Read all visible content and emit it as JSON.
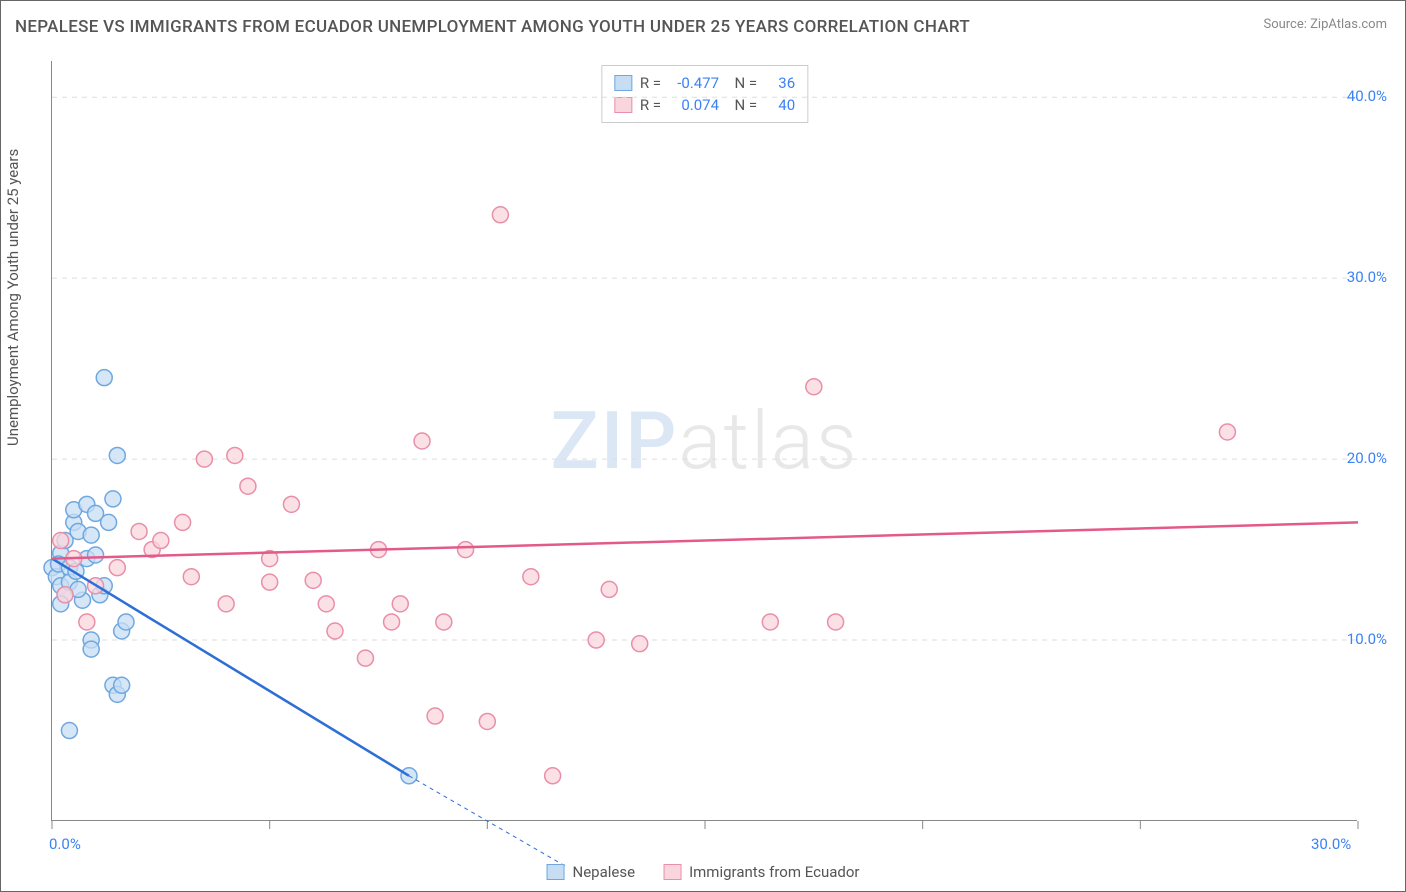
{
  "title": "NEPALESE VS IMMIGRANTS FROM ECUADOR UNEMPLOYMENT AMONG YOUTH UNDER 25 YEARS CORRELATION CHART",
  "source_label": "Source: ZipAtlas.com",
  "y_axis_label": "Unemployment Among Youth under 25 years",
  "watermark_a": "ZIP",
  "watermark_b": "atlas",
  "chart": {
    "type": "scatter",
    "background_color": "#ffffff",
    "grid_color": "#dddddd",
    "axis_color": "#888888",
    "tick_label_color": "#3b82f6",
    "xlim": [
      0,
      30
    ],
    "ylim": [
      0,
      42
    ],
    "y_ticks": [
      10,
      20,
      30,
      40
    ],
    "y_tick_labels": [
      "10.0%",
      "20.0%",
      "30.0%",
      "40.0%"
    ],
    "x_ticks": [
      0,
      5,
      10,
      15,
      20,
      25,
      30
    ],
    "x_tick_labels_shown": {
      "0": "0.0%",
      "30": "30.0%"
    },
    "marker_radius": 8,
    "marker_stroke_width": 1.5,
    "trend_line_width": 2.5,
    "trend_dash_width": 1,
    "title_fontsize": 17,
    "label_fontsize": 15
  },
  "series": [
    {
      "name": "Nepalese",
      "fill": "#c7ddf4",
      "stroke": "#6fa8e0",
      "line_color": "#2e6fd6",
      "R": "-0.477",
      "N": "36",
      "trend": {
        "x1": 0,
        "y1": 14.5,
        "x2": 8.2,
        "y2": 2.5,
        "dash_to_x": 11.8,
        "dash_to_y": -2.5
      },
      "points": [
        [
          0.0,
          14.0
        ],
        [
          0.1,
          13.5
        ],
        [
          0.2,
          14.8
        ],
        [
          0.2,
          13.0
        ],
        [
          0.15,
          14.2
        ],
        [
          0.3,
          12.5
        ],
        [
          0.3,
          15.5
        ],
        [
          0.4,
          14.0
        ],
        [
          0.4,
          13.2
        ],
        [
          0.5,
          16.5
        ],
        [
          0.5,
          17.2
        ],
        [
          0.6,
          16.0
        ],
        [
          0.55,
          13.8
        ],
        [
          0.7,
          12.2
        ],
        [
          0.8,
          17.5
        ],
        [
          0.8,
          14.5
        ],
        [
          0.9,
          10.0
        ],
        [
          0.9,
          9.5
        ],
        [
          1.0,
          17.0
        ],
        [
          1.0,
          14.7
        ],
        [
          1.1,
          12.5
        ],
        [
          1.2,
          13.0
        ],
        [
          1.3,
          16.5
        ],
        [
          1.4,
          17.8
        ],
        [
          1.4,
          7.5
        ],
        [
          1.5,
          7.0
        ],
        [
          1.5,
          20.2
        ],
        [
          1.6,
          10.5
        ],
        [
          1.7,
          11.0
        ],
        [
          0.4,
          5.0
        ],
        [
          1.6,
          7.5
        ],
        [
          1.2,
          24.5
        ],
        [
          0.2,
          12.0
        ],
        [
          0.6,
          12.8
        ],
        [
          0.9,
          15.8
        ],
        [
          8.2,
          2.5
        ]
      ]
    },
    {
      "name": "Immigrants from Ecuador",
      "fill": "#f9d5de",
      "stroke": "#e98fa8",
      "line_color": "#e35a8a",
      "R": "0.074",
      "N": "40",
      "trend": {
        "x1": 0,
        "y1": 14.5,
        "x2": 30,
        "y2": 16.5
      },
      "points": [
        [
          0.3,
          12.5
        ],
        [
          0.5,
          14.5
        ],
        [
          0.8,
          11.0
        ],
        [
          1.0,
          13.0
        ],
        [
          1.5,
          14.0
        ],
        [
          2.0,
          16.0
        ],
        [
          2.3,
          15.0
        ],
        [
          2.5,
          15.5
        ],
        [
          3.0,
          16.5
        ],
        [
          3.2,
          13.5
        ],
        [
          3.5,
          20.0
        ],
        [
          4.0,
          12.0
        ],
        [
          4.2,
          20.2
        ],
        [
          4.5,
          18.5
        ],
        [
          5.0,
          13.2
        ],
        [
          5.0,
          14.5
        ],
        [
          5.5,
          17.5
        ],
        [
          6.0,
          13.3
        ],
        [
          6.3,
          12.0
        ],
        [
          6.5,
          10.5
        ],
        [
          7.2,
          9.0
        ],
        [
          7.5,
          15.0
        ],
        [
          7.8,
          11.0
        ],
        [
          8.0,
          12.0
        ],
        [
          8.5,
          21.0
        ],
        [
          8.8,
          5.8
        ],
        [
          9.0,
          11.0
        ],
        [
          9.5,
          15.0
        ],
        [
          10.0,
          5.5
        ],
        [
          10.3,
          33.5
        ],
        [
          11.0,
          13.5
        ],
        [
          11.5,
          2.5
        ],
        [
          12.5,
          10.0
        ],
        [
          12.8,
          12.8
        ],
        [
          13.5,
          9.8
        ],
        [
          16.5,
          11.0
        ],
        [
          17.5,
          24.0
        ],
        [
          18.0,
          11.0
        ],
        [
          27.0,
          21.5
        ],
        [
          0.2,
          15.5
        ]
      ]
    }
  ],
  "legend_bottom": [
    {
      "label": "Nepalese",
      "fill": "#c7ddf4",
      "stroke": "#6fa8e0"
    },
    {
      "label": "Immigrants from Ecuador",
      "fill": "#f9d5de",
      "stroke": "#e98fa8"
    }
  ]
}
